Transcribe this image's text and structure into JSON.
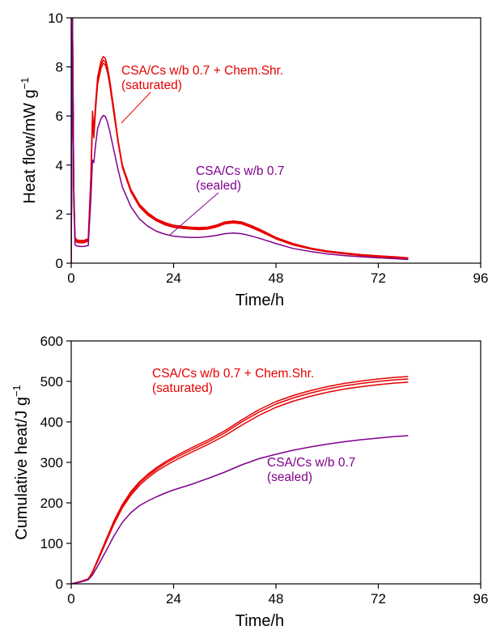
{
  "chart_data": [
    {
      "type": "line",
      "xlabel": "Time/h",
      "ylabel": "Heat flow/mW g",
      "ylabel_sup": "−1",
      "xlim": [
        0,
        96
      ],
      "ylim": [
        0,
        10
      ],
      "xticks": [
        0,
        24,
        48,
        72,
        96
      ],
      "yticks": [
        0,
        2,
        4,
        6,
        8,
        10
      ],
      "grid": false,
      "annotations": [
        {
          "lines": [
            "CSA/Cs w/b 0.7 + Chem.Shr.",
            "(saturated)"
          ],
          "color": "#e60000"
        },
        {
          "lines": [
            "CSA/Cs w/b 0.7",
            "(sealed)"
          ],
          "color": "#80008c"
        }
      ],
      "series": [
        {
          "group": "saturated",
          "color": "#e60000",
          "x": [
            0,
            0.3,
            0.6,
            0.9,
            1.3,
            2,
            3,
            4,
            4.6,
            5,
            5.3,
            5.7,
            6.2,
            7,
            7.5,
            8,
            8.5,
            9,
            10,
            11,
            12,
            14,
            16,
            18,
            20,
            22,
            24,
            26,
            28,
            30,
            32,
            34,
            36,
            38,
            40,
            42,
            44,
            48,
            52,
            56,
            60,
            64,
            68,
            72,
            76,
            79
          ],
          "y": [
            0,
            10,
            3,
            1.05,
            0.95,
            0.93,
            0.93,
            1.0,
            3.5,
            6.2,
            5.4,
            6.5,
            7.6,
            8.25,
            8.42,
            8.35,
            8.0,
            7.5,
            6.3,
            5.0,
            4.0,
            3.0,
            2.4,
            2.05,
            1.8,
            1.65,
            1.55,
            1.5,
            1.47,
            1.45,
            1.47,
            1.55,
            1.68,
            1.72,
            1.68,
            1.55,
            1.4,
            1.05,
            0.8,
            0.62,
            0.5,
            0.42,
            0.35,
            0.3,
            0.26,
            0.22
          ]
        },
        {
          "group": "saturated",
          "color": "#e60000",
          "x": [
            0,
            0.3,
            0.6,
            0.9,
            1.3,
            2,
            3,
            4,
            4.6,
            5,
            5.3,
            5.7,
            6.2,
            7,
            7.5,
            8,
            8.5,
            9,
            10,
            11,
            12,
            14,
            16,
            18,
            20,
            22,
            24,
            26,
            28,
            30,
            32,
            34,
            36,
            38,
            40,
            42,
            44,
            48,
            52,
            56,
            60,
            64,
            68,
            72,
            76,
            79
          ],
          "y": [
            0,
            10,
            3,
            0.98,
            0.9,
            0.88,
            0.88,
            0.95,
            3.4,
            6.0,
            5.25,
            6.35,
            7.45,
            8.1,
            8.28,
            8.2,
            7.88,
            7.4,
            6.2,
            4.95,
            3.95,
            2.95,
            2.35,
            2.0,
            1.76,
            1.6,
            1.5,
            1.46,
            1.43,
            1.41,
            1.43,
            1.51,
            1.64,
            1.68,
            1.64,
            1.51,
            1.36,
            1.02,
            0.77,
            0.6,
            0.48,
            0.4,
            0.33,
            0.28,
            0.24,
            0.2
          ]
        },
        {
          "group": "saturated",
          "color": "#e60000",
          "x": [
            0,
            0.3,
            0.6,
            0.9,
            1.3,
            2,
            3,
            4,
            4.6,
            5,
            5.3,
            5.7,
            6.2,
            7,
            7.5,
            8,
            8.5,
            9,
            10,
            11,
            12,
            14,
            16,
            18,
            20,
            22,
            24,
            26,
            28,
            30,
            32,
            34,
            36,
            38,
            40,
            42,
            44,
            48,
            52,
            56,
            60,
            64,
            68,
            72,
            76,
            79
          ],
          "y": [
            0,
            10,
            3,
            0.92,
            0.85,
            0.83,
            0.83,
            0.9,
            3.3,
            5.8,
            5.1,
            6.2,
            7.3,
            7.95,
            8.15,
            8.08,
            7.78,
            7.3,
            6.1,
            4.9,
            3.9,
            2.9,
            2.3,
            1.95,
            1.72,
            1.56,
            1.46,
            1.42,
            1.39,
            1.37,
            1.39,
            1.47,
            1.6,
            1.64,
            1.6,
            1.47,
            1.32,
            0.99,
            0.74,
            0.58,
            0.46,
            0.38,
            0.31,
            0.26,
            0.22,
            0.18
          ]
        },
        {
          "group": "sealed",
          "color": "#80008c",
          "x": [
            0,
            0.3,
            0.6,
            0.9,
            1.3,
            2,
            3,
            4,
            4.6,
            5,
            5.3,
            5.7,
            6.2,
            7,
            7.5,
            8,
            8.5,
            9,
            10,
            11,
            12,
            14,
            16,
            18,
            20,
            22,
            24,
            26,
            28,
            30,
            32,
            34,
            36,
            38,
            40,
            42,
            44,
            48,
            52,
            56,
            60,
            64,
            68,
            72,
            76,
            79
          ],
          "y": [
            0,
            10,
            2.5,
            0.75,
            0.7,
            0.68,
            0.68,
            0.72,
            2.6,
            4.2,
            4.1,
            4.8,
            5.5,
            5.9,
            6.02,
            5.98,
            5.75,
            5.4,
            4.6,
            3.8,
            3.1,
            2.3,
            1.8,
            1.5,
            1.3,
            1.18,
            1.1,
            1.07,
            1.05,
            1.05,
            1.08,
            1.13,
            1.2,
            1.23,
            1.2,
            1.12,
            1.02,
            0.8,
            0.6,
            0.48,
            0.38,
            0.31,
            0.26,
            0.22,
            0.18,
            0.15
          ]
        }
      ]
    },
    {
      "type": "line",
      "xlabel": "Time/h",
      "ylabel": "Cumulative heat/J g",
      "ylabel_sup": "−1",
      "xlim": [
        0,
        96
      ],
      "ylim": [
        0,
        600
      ],
      "xticks": [
        0,
        24,
        48,
        72,
        96
      ],
      "yticks": [
        0,
        100,
        200,
        300,
        400,
        500,
        600
      ],
      "grid": false,
      "annotations": [
        {
          "lines": [
            "CSA/Cs w/b 0.7 + Chem.Shr.",
            "(saturated)"
          ],
          "color": "#e60000"
        },
        {
          "lines": [
            "CSA/Cs w/b 0.7",
            "(sealed)"
          ],
          "color": "#80008c"
        }
      ],
      "series": [
        {
          "group": "saturated",
          "color": "#e60000",
          "x": [
            0,
            2,
            4,
            5,
            6,
            8,
            10,
            12,
            14,
            16,
            18,
            20,
            22,
            24,
            28,
            32,
            36,
            40,
            44,
            48,
            52,
            56,
            60,
            64,
            68,
            72,
            76,
            79
          ],
          "y": [
            0,
            5,
            12,
            30,
            55,
            105,
            155,
            196,
            228,
            252,
            271,
            287,
            301,
            313,
            335,
            355,
            378,
            405,
            430,
            450,
            465,
            477,
            487,
            495,
            501,
            506,
            510,
            512
          ]
        },
        {
          "group": "saturated",
          "color": "#e60000",
          "x": [
            0,
            2,
            4,
            5,
            6,
            8,
            10,
            12,
            14,
            16,
            18,
            20,
            22,
            24,
            28,
            32,
            36,
            40,
            44,
            48,
            52,
            56,
            60,
            64,
            68,
            72,
            76,
            79
          ],
          "y": [
            0,
            5,
            12,
            29,
            53,
            102,
            151,
            192,
            224,
            248,
            267,
            283,
            297,
            309,
            330,
            350,
            373,
            400,
            424,
            444,
            459,
            471,
            481,
            489,
            495,
            500,
            504,
            506
          ]
        },
        {
          "group": "saturated",
          "color": "#e60000",
          "x": [
            0,
            2,
            4,
            5,
            6,
            8,
            10,
            12,
            14,
            16,
            18,
            20,
            22,
            24,
            28,
            32,
            36,
            40,
            44,
            48,
            52,
            56,
            60,
            64,
            68,
            72,
            76,
            79
          ],
          "y": [
            0,
            5,
            11,
            28,
            51,
            99,
            147,
            188,
            219,
            243,
            262,
            278,
            291,
            303,
            324,
            344,
            366,
            392,
            416,
            436,
            451,
            463,
            473,
            481,
            487,
            492,
            496,
            498
          ]
        },
        {
          "group": "sealed",
          "color": "#80008c",
          "x": [
            0,
            2,
            4,
            5,
            6,
            8,
            10,
            12,
            14,
            16,
            18,
            20,
            22,
            24,
            28,
            32,
            36,
            40,
            44,
            48,
            52,
            56,
            60,
            64,
            68,
            72,
            76,
            79
          ],
          "y": [
            0,
            4,
            10,
            22,
            40,
            78,
            118,
            152,
            176,
            193,
            205,
            215,
            224,
            232,
            245,
            260,
            276,
            294,
            309,
            320,
            330,
            338,
            345,
            351,
            356,
            360,
            364,
            366
          ]
        }
      ]
    }
  ]
}
